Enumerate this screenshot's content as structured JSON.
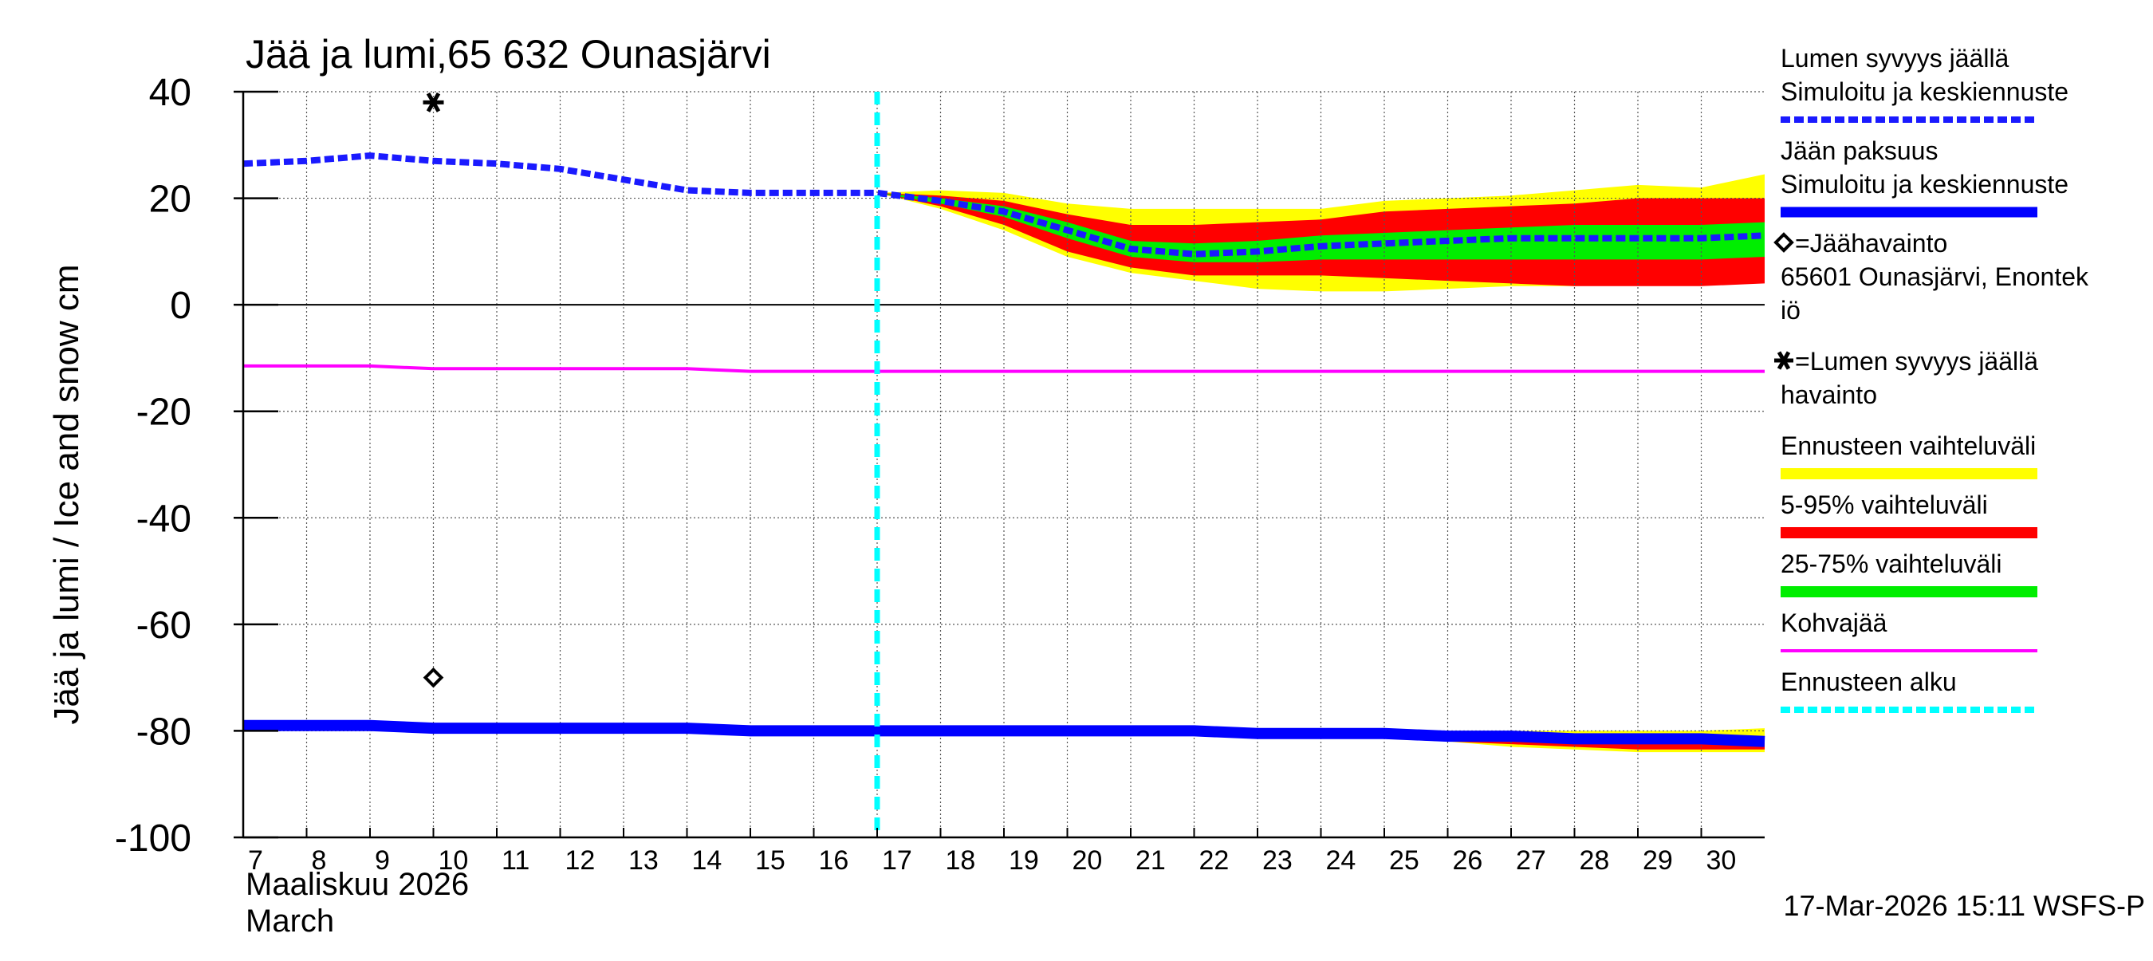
{
  "chart_data": {
    "type": "area",
    "title": "Jää ja lumi,65 632 Ounasjärvi",
    "ylabel": "Jää ja lumi / Ice and snow    cm",
    "xlabel_lines": [
      "Maaliskuu 2026",
      "March"
    ],
    "ylim": [
      -100,
      40
    ],
    "yticks": [
      40,
      20,
      0,
      -20,
      -40,
      -60,
      -80,
      -100
    ],
    "xlim": [
      7,
      31
    ],
    "x_ticks": [
      7,
      8,
      9,
      10,
      11,
      12,
      13,
      14,
      15,
      16,
      17,
      18,
      19,
      20,
      21,
      22,
      23,
      24,
      25,
      26,
      27,
      28,
      29,
      30
    ],
    "forecast_start": 17,
    "grid": true,
    "legend_position": "right",
    "footer": "17-Mar-2026 15:11 WSFS-P",
    "colors": {
      "snow": "#1a1aff",
      "ice": "#0000ff",
      "slush": "#ff00ff",
      "range_full": "#ffff00",
      "range_5_95": "#ff0000",
      "range_25_75": "#00ee00",
      "forecast_start": "#00ffff",
      "zero_line": "#000000"
    },
    "legend": [
      {
        "lines": [
          "Lumen syvyys jäällä",
          "Simuloitu ja keskiennuste"
        ],
        "symbol": "dashed-line",
        "color": "#1a1aff"
      },
      {
        "lines": [
          "Jään paksuus",
          "Simuloitu ja keskiennuste"
        ],
        "symbol": "thick-line",
        "color": "#0000ff"
      },
      {
        "lines": [
          "=Jäähavainto",
          "65601 Ounasjärvi, Enontek",
          "iö"
        ],
        "symbol": "diamond",
        "color": "#000000"
      },
      {
        "lines": [
          "=Lumen syvyys jäällä",
          "havainto"
        ],
        "symbol": "star",
        "color": "#000000"
      },
      {
        "lines": [
          "Ennusteen vaihteluväli"
        ],
        "symbol": "band",
        "color": "#ffff00"
      },
      {
        "lines": [
          "5-95% vaihteluväli"
        ],
        "symbol": "band",
        "color": "#ff0000"
      },
      {
        "lines": [
          "25-75% vaihteluväli"
        ],
        "symbol": "band",
        "color": "#00ee00"
      },
      {
        "lines": [
          "Kohvajää"
        ],
        "symbol": "line",
        "color": "#ff00ff"
      },
      {
        "lines": [
          "Ennusteen alku"
        ],
        "symbol": "dashed-line",
        "color": "#00ffff"
      }
    ],
    "snow_depth": {
      "x": [
        7,
        8,
        9,
        10,
        11,
        12,
        13,
        14,
        15,
        16,
        17,
        18,
        19,
        20,
        21,
        22,
        23,
        24,
        25,
        26,
        27,
        28,
        29,
        30,
        31
      ],
      "y": [
        26.5,
        27,
        28,
        27,
        26.5,
        25.5,
        23.5,
        21.5,
        21,
        21,
        21,
        19.5,
        17.5,
        14,
        10.5,
        9.5,
        10,
        11,
        11.5,
        12,
        12.5,
        12.5,
        12.5,
        12.5,
        13
      ]
    },
    "snow_bands": {
      "x": [
        17,
        18,
        19,
        20,
        21,
        22,
        23,
        24,
        25,
        26,
        27,
        28,
        29,
        30,
        31
      ],
      "full_max": [
        21,
        21.5,
        21,
        19,
        18,
        18,
        18,
        18,
        19.5,
        20,
        20.5,
        21.5,
        22.5,
        22,
        24.5
      ],
      "full_min": [
        21,
        18,
        14,
        9,
        6,
        4.5,
        3,
        2.5,
        2.5,
        3,
        3.5,
        3.5,
        4,
        4.5,
        5
      ],
      "p95": [
        21,
        20.5,
        19.5,
        17,
        15,
        15,
        15.5,
        16,
        17.5,
        18,
        18.5,
        19,
        20,
        20,
        20
      ],
      "p5": [
        21,
        18.5,
        15,
        10,
        7,
        5.5,
        5.5,
        5.5,
        5,
        4.5,
        4,
        3.5,
        3.5,
        3.5,
        4
      ],
      "p75": [
        21,
        20,
        18.5,
        15.5,
        12,
        11.5,
        12,
        13,
        13.5,
        14,
        14.5,
        15,
        15,
        15,
        15.5
      ],
      "p25": [
        21,
        19,
        16.5,
        12.5,
        9,
        8,
        8,
        8.5,
        8.5,
        8.5,
        8.5,
        8.5,
        8.5,
        8.5,
        9
      ]
    },
    "ice_thickness": {
      "x": [
        7,
        8,
        9,
        10,
        11,
        12,
        13,
        14,
        15,
        16,
        17,
        18,
        19,
        20,
        21,
        22,
        23,
        24,
        25,
        26,
        27,
        28,
        29,
        30,
        31
      ],
      "y": [
        -79,
        -79,
        -79,
        -79.5,
        -79.5,
        -79.5,
        -79.5,
        -79.5,
        -80,
        -80,
        -80,
        -80,
        -80,
        -80,
        -80,
        -80,
        -80.5,
        -80.5,
        -80.5,
        -81,
        -81,
        -81.5,
        -81.5,
        -81.5,
        -82
      ]
    },
    "ice_bands": {
      "x": [
        17,
        20,
        23,
        25,
        26,
        27,
        28,
        29,
        30,
        31
      ],
      "full_max": [
        -80,
        -80,
        -80,
        -80,
        -80,
        -80,
        -80,
        -80,
        -80,
        -79.5
      ],
      "full_min": [
        -80,
        -80.5,
        -81,
        -81.5,
        -82,
        -83,
        -83.5,
        -84,
        -84,
        -84
      ],
      "p95": [
        -80,
        -80,
        -80,
        -80.5,
        -80.5,
        -80.5,
        -81,
        -81,
        -81,
        -81
      ],
      "p5": [
        -80,
        -80.5,
        -81,
        -81.5,
        -82,
        -82.5,
        -83,
        -83.5,
        -83.5,
        -83.5
      ]
    },
    "slush_ice": {
      "x": [
        7,
        9,
        10,
        12,
        14,
        15,
        17,
        31
      ],
      "y": [
        -11.5,
        -11.5,
        -12,
        -12,
        -12,
        -12.5,
        -12.5,
        -12.5
      ]
    },
    "ice_observation": {
      "x": 10,
      "y": -70
    },
    "snow_observation": {
      "x": 10,
      "y": 38
    }
  }
}
